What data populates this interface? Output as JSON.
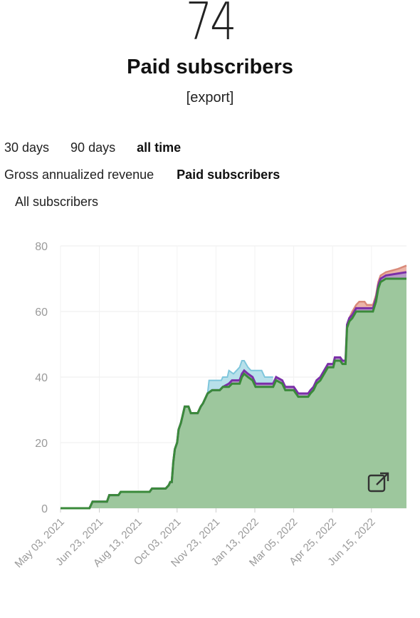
{
  "header": {
    "count": "74",
    "title": "Paid subscribers",
    "export_label": "[export]"
  },
  "ranges": [
    {
      "label": "30 days",
      "active": false
    },
    {
      "label": "90 days",
      "active": false
    },
    {
      "label": "all time",
      "active": true
    }
  ],
  "metrics": [
    {
      "label": "Gross annualized revenue",
      "active": false
    },
    {
      "label": "Paid subscribers",
      "active": true
    },
    {
      "label": "All subscribers",
      "active": false
    }
  ],
  "icons": {
    "external_link": "external-link-icon"
  },
  "chart_data": {
    "type": "area",
    "ylim": [
      0,
      80
    ],
    "yticks": [
      0,
      20,
      40,
      60,
      80
    ],
    "xticks": [
      "May 03, 2021",
      "Jun 23, 2021",
      "Aug 13, 2021",
      "Oct 03, 2021",
      "Nov 23, 2021",
      "Jan 13, 2022",
      "Mar 05, 2022",
      "Apr 25, 2022",
      "Jun 15, 2022"
    ],
    "x_range": [
      "2021-05-03",
      "2022-07-31"
    ],
    "colors": {
      "green": "#3a8a3a",
      "green_fill": "#9dc79d",
      "purple": "#7b2fa8",
      "blue": "#7fc6dc",
      "blue_fill": "#b7e0ea",
      "red": "#d98a7a"
    },
    "series": [
      {
        "values": [
          [
            "2021-05-03",
            0
          ],
          [
            "2021-06-10",
            0
          ],
          [
            "2021-06-14",
            2
          ],
          [
            "2021-07-03",
            2
          ],
          [
            "2021-07-06",
            4
          ],
          [
            "2021-07-18",
            4
          ],
          [
            "2021-07-21",
            5
          ],
          [
            "2021-08-28",
            5
          ],
          [
            "2021-08-31",
            6
          ],
          [
            "2021-09-18",
            6
          ],
          [
            "2021-09-22",
            7
          ],
          [
            "2021-09-24",
            8
          ],
          [
            "2021-09-26",
            8
          ],
          [
            "2021-09-28",
            14
          ],
          [
            "2021-09-30",
            18
          ],
          [
            "2021-10-03",
            20
          ],
          [
            "2021-10-05",
            24
          ],
          [
            "2021-10-08",
            26
          ],
          [
            "2021-10-10",
            28
          ],
          [
            "2021-10-13",
            31
          ],
          [
            "2021-10-18",
            31
          ],
          [
            "2021-10-21",
            29
          ],
          [
            "2021-10-30",
            29
          ],
          [
            "2021-11-03",
            31
          ],
          [
            "2021-11-06",
            32
          ],
          [
            "2021-11-12",
            35
          ],
          [
            "2021-11-18",
            36
          ],
          [
            "2021-11-28",
            36
          ],
          [
            "2021-12-02",
            37
          ],
          [
            "2021-12-10",
            37
          ],
          [
            "2021-12-14",
            38
          ],
          [
            "2021-12-24",
            38
          ],
          [
            "2021-12-27",
            40
          ],
          [
            "2021-12-30",
            41
          ],
          [
            "2022-01-04",
            40
          ],
          [
            "2022-01-10",
            39
          ],
          [
            "2022-01-14",
            37
          ],
          [
            "2022-02-06",
            37
          ],
          [
            "2022-02-10",
            39
          ],
          [
            "2022-02-18",
            38
          ],
          [
            "2022-02-22",
            36
          ],
          [
            "2022-03-05",
            36
          ],
          [
            "2022-03-08",
            35
          ],
          [
            "2022-03-11",
            34
          ],
          [
            "2022-03-24",
            34
          ],
          [
            "2022-03-27",
            35
          ],
          [
            "2022-03-31",
            36
          ],
          [
            "2022-04-04",
            38
          ],
          [
            "2022-04-09",
            39
          ],
          [
            "2022-04-14",
            41
          ],
          [
            "2022-04-19",
            43
          ],
          [
            "2022-04-26",
            43
          ],
          [
            "2022-04-28",
            45
          ],
          [
            "2022-05-05",
            45
          ],
          [
            "2022-05-08",
            44
          ],
          [
            "2022-05-12",
            44
          ],
          [
            "2022-05-14",
            55
          ],
          [
            "2022-05-17",
            57
          ],
          [
            "2022-05-21",
            58
          ],
          [
            "2022-05-26",
            60
          ],
          [
            "2022-06-06",
            60
          ],
          [
            "2022-06-09",
            60
          ],
          [
            "2022-06-17",
            60
          ],
          [
            "2022-06-21",
            63
          ],
          [
            "2022-06-24",
            67
          ],
          [
            "2022-06-27",
            69
          ],
          [
            "2022-07-04",
            70
          ],
          [
            "2022-07-31",
            70
          ]
        ]
      },
      {
        "values": [
          [
            "2021-05-03",
            0
          ],
          [
            "2021-06-10",
            0
          ],
          [
            "2021-06-14",
            2
          ],
          [
            "2021-07-03",
            2
          ],
          [
            "2021-07-06",
            4
          ],
          [
            "2021-07-18",
            4
          ],
          [
            "2021-07-21",
            5
          ],
          [
            "2021-08-28",
            5
          ],
          [
            "2021-08-31",
            6
          ],
          [
            "2021-09-18",
            6
          ],
          [
            "2021-09-22",
            7
          ],
          [
            "2021-09-24",
            8
          ],
          [
            "2021-09-26",
            8
          ],
          [
            "2021-09-28",
            14
          ],
          [
            "2021-09-30",
            18
          ],
          [
            "2021-10-03",
            20
          ],
          [
            "2021-10-05",
            24
          ],
          [
            "2021-10-08",
            26
          ],
          [
            "2021-10-10",
            28
          ],
          [
            "2021-10-13",
            31
          ],
          [
            "2021-10-18",
            31
          ],
          [
            "2021-10-21",
            29
          ],
          [
            "2021-10-30",
            29
          ],
          [
            "2021-11-03",
            31
          ],
          [
            "2021-11-06",
            32
          ],
          [
            "2021-11-12",
            35
          ],
          [
            "2021-11-18",
            36
          ],
          [
            "2021-11-28",
            36
          ],
          [
            "2021-12-02",
            37
          ],
          [
            "2021-12-10",
            38
          ],
          [
            "2021-12-14",
            39
          ],
          [
            "2021-12-24",
            39
          ],
          [
            "2021-12-27",
            41
          ],
          [
            "2021-12-30",
            42
          ],
          [
            "2022-01-04",
            41
          ],
          [
            "2022-01-10",
            40
          ],
          [
            "2022-01-14",
            38
          ],
          [
            "2022-02-06",
            38
          ],
          [
            "2022-02-10",
            40
          ],
          [
            "2022-02-18",
            39
          ],
          [
            "2022-02-22",
            37
          ],
          [
            "2022-03-05",
            37
          ],
          [
            "2022-03-08",
            36
          ],
          [
            "2022-03-11",
            35
          ],
          [
            "2022-03-24",
            35
          ],
          [
            "2022-03-27",
            36
          ],
          [
            "2022-03-31",
            37
          ],
          [
            "2022-04-04",
            39
          ],
          [
            "2022-04-09",
            40
          ],
          [
            "2022-04-14",
            42
          ],
          [
            "2022-04-19",
            44
          ],
          [
            "2022-04-26",
            44
          ],
          [
            "2022-04-28",
            46
          ],
          [
            "2022-05-05",
            46
          ],
          [
            "2022-05-08",
            45
          ],
          [
            "2022-05-12",
            45
          ],
          [
            "2022-05-14",
            56
          ],
          [
            "2022-05-17",
            58
          ],
          [
            "2022-05-21",
            59
          ],
          [
            "2022-05-26",
            61
          ],
          [
            "2022-06-06",
            61
          ],
          [
            "2022-06-09",
            61
          ],
          [
            "2022-06-17",
            61
          ],
          [
            "2022-06-21",
            64
          ],
          [
            "2022-06-24",
            68
          ],
          [
            "2022-06-27",
            70
          ],
          [
            "2022-07-04",
            71
          ],
          [
            "2022-07-31",
            72
          ]
        ]
      },
      {
        "values": [
          [
            "2021-11-12",
            35
          ],
          [
            "2021-11-14",
            39
          ],
          [
            "2021-11-30",
            39
          ],
          [
            "2021-12-02",
            40
          ],
          [
            "2021-12-08",
            40
          ],
          [
            "2021-12-10",
            42
          ],
          [
            "2021-12-16",
            41
          ],
          [
            "2021-12-20",
            42
          ],
          [
            "2021-12-24",
            43
          ],
          [
            "2021-12-27",
            45
          ],
          [
            "2021-12-30",
            45
          ],
          [
            "2022-01-04",
            43
          ],
          [
            "2022-01-08",
            42
          ],
          [
            "2022-01-22",
            42
          ],
          [
            "2022-01-26",
            40
          ],
          [
            "2022-02-06",
            40
          ]
        ]
      },
      {
        "values": [
          [
            "2022-05-17",
            58
          ],
          [
            "2022-05-21",
            60
          ],
          [
            "2022-05-26",
            62
          ],
          [
            "2022-05-30",
            63
          ],
          [
            "2022-06-06",
            63
          ],
          [
            "2022-06-09",
            62
          ],
          [
            "2022-06-17",
            62
          ],
          [
            "2022-06-21",
            65
          ],
          [
            "2022-06-24",
            69
          ],
          [
            "2022-06-27",
            71
          ],
          [
            "2022-07-04",
            72
          ],
          [
            "2022-07-20",
            73
          ],
          [
            "2022-07-31",
            74
          ]
        ]
      }
    ]
  }
}
